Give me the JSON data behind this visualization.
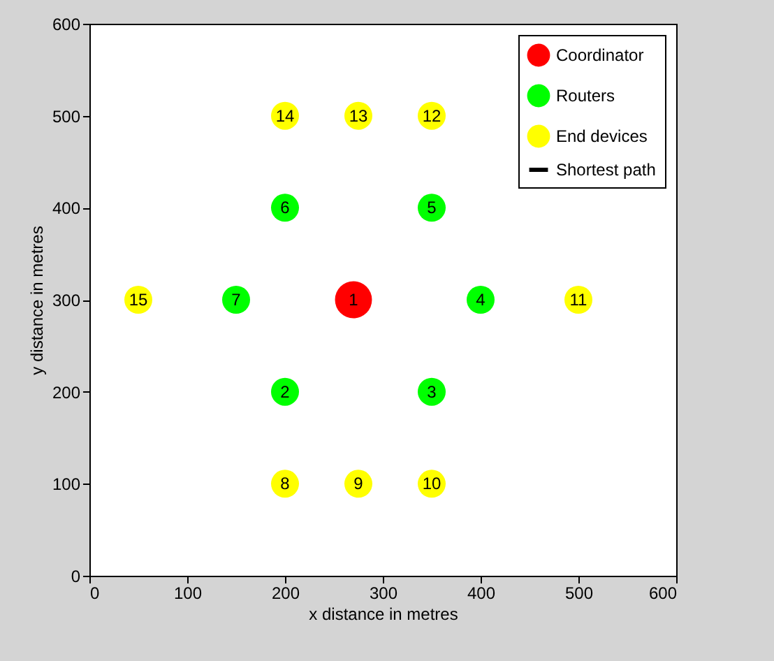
{
  "chart_data": {
    "type": "scatter",
    "xlabel": "x distance in metres",
    "ylabel": "y distance in metres",
    "xlim": [
      0,
      600
    ],
    "ylim": [
      0,
      600
    ],
    "xticks": [
      0,
      100,
      200,
      300,
      400,
      500,
      600
    ],
    "yticks": [
      0,
      100,
      200,
      300,
      400,
      500,
      600
    ],
    "grid": false,
    "legend": "top right",
    "marker": "circle",
    "series": [
      {
        "name": "Coordinator",
        "color": "#ff0000",
        "x": [
          270
        ],
        "values": [
          300
        ]
      },
      {
        "name": "Routers",
        "color": "#00ff00",
        "x": [
          200,
          350,
          400,
          350,
          200,
          150
        ],
        "values": [
          200,
          200,
          300,
          400,
          400,
          300
        ]
      },
      {
        "name": "End devices",
        "color": "#ffff00",
        "x": [
          200,
          275,
          350,
          500,
          350,
          275,
          200,
          50
        ],
        "values": [
          100,
          100,
          100,
          300,
          500,
          500,
          500,
          300
        ]
      },
      {
        "name": "Shortest path",
        "type": "line",
        "color": "#000000"
      }
    ],
    "annotations": [
      {
        "text": "1",
        "x": 270,
        "y": 300
      },
      {
        "text": "2",
        "x": 200,
        "y": 200
      },
      {
        "text": "3",
        "x": 350,
        "y": 200
      },
      {
        "text": "4",
        "x": 400,
        "y": 300
      },
      {
        "text": "5",
        "x": 350,
        "y": 400
      },
      {
        "text": "6",
        "x": 200,
        "y": 400
      },
      {
        "text": "7",
        "x": 150,
        "y": 300
      },
      {
        "text": "8",
        "x": 200,
        "y": 100
      },
      {
        "text": "9",
        "x": 275,
        "y": 100
      },
      {
        "text": "10",
        "x": 350,
        "y": 100
      },
      {
        "text": "11",
        "x": 500,
        "y": 300
      },
      {
        "text": "12",
        "x": 350,
        "y": 500
      },
      {
        "text": "13",
        "x": 275,
        "y": 500
      },
      {
        "text": "14",
        "x": 200,
        "y": 500
      },
      {
        "text": "15",
        "x": 50,
        "y": 300
      }
    ]
  }
}
